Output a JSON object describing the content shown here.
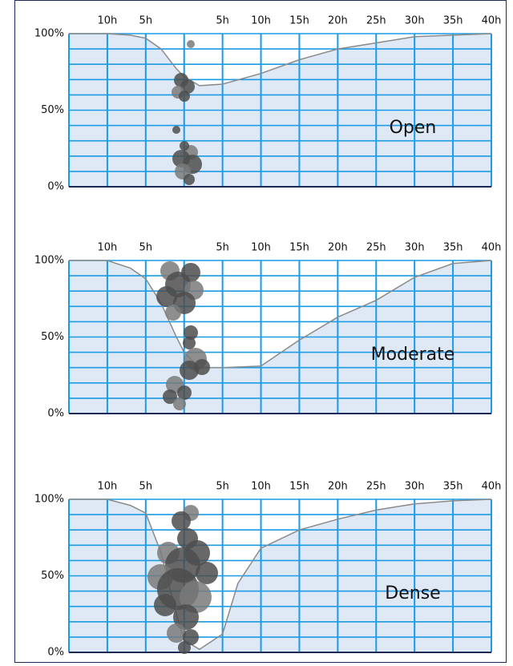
{
  "chart_data": [
    {
      "type": "line",
      "label": "Open",
      "color": "#8a8a8a",
      "fill": "#dfe9f5",
      "grid_color": "#1a9be6",
      "x": [
        -15,
        -10,
        -7,
        -5,
        -3,
        -1,
        0,
        2,
        5,
        10,
        15,
        20,
        25,
        30,
        35,
        40
      ],
      "values": [
        100,
        100,
        99,
        97,
        90,
        77,
        72,
        66,
        67,
        74,
        83,
        90,
        94,
        98,
        99,
        100
      ],
      "xlim": [
        -15,
        40
      ],
      "ylim": [
        0,
        100
      ],
      "xticks": [
        {
          "value": -10,
          "label": "10h"
        },
        {
          "value": -5,
          "label": "5h"
        },
        {
          "value": 0,
          "label": null
        },
        {
          "value": 5,
          "label": "5h"
        },
        {
          "value": 10,
          "label": "10h"
        },
        {
          "value": 15,
          "label": "15h"
        },
        {
          "value": 20,
          "label": "20h"
        },
        {
          "value": 25,
          "label": "25h"
        },
        {
          "value": 30,
          "label": "30h"
        },
        {
          "value": 35,
          "label": "35h"
        },
        {
          "value": 40,
          "label": "40h"
        }
      ],
      "yticks": [
        {
          "value": 0,
          "label": "0%"
        },
        {
          "value": 50,
          "label": "50%"
        },
        {
          "value": 100,
          "label": "100%"
        }
      ],
      "ygrid": [
        0,
        10,
        20,
        30,
        40,
        50,
        60,
        70,
        80,
        90,
        100
      ]
    },
    {
      "type": "line",
      "label": "Moderate",
      "color": "#8a8a8a",
      "fill": "#dfe9f5",
      "grid_color": "#1a9be6",
      "x": [
        -15,
        -10,
        -7,
        -5,
        -3,
        -1,
        0,
        2,
        5,
        10,
        15,
        20,
        25,
        30,
        35,
        40
      ],
      "values": [
        100,
        100,
        95,
        88,
        72,
        50,
        40,
        30,
        30,
        31,
        48,
        63,
        74,
        89,
        98,
        100
      ],
      "xlim": [
        -15,
        40
      ],
      "ylim": [
        0,
        100
      ],
      "xticks": [
        {
          "value": -10,
          "label": "10h"
        },
        {
          "value": -5,
          "label": "5h"
        },
        {
          "value": 0,
          "label": null
        },
        {
          "value": 5,
          "label": "5h"
        },
        {
          "value": 10,
          "label": "10h"
        },
        {
          "value": 15,
          "label": "15h"
        },
        {
          "value": 20,
          "label": "20h"
        },
        {
          "value": 25,
          "label": "25h"
        },
        {
          "value": 30,
          "label": "30h"
        },
        {
          "value": 35,
          "label": "35h"
        },
        {
          "value": 40,
          "label": "40h"
        }
      ],
      "yticks": [
        {
          "value": 0,
          "label": "0%"
        },
        {
          "value": 50,
          "label": "50%"
        },
        {
          "value": 100,
          "label": "100%"
        }
      ],
      "ygrid": [
        0,
        10,
        20,
        30,
        40,
        50,
        60,
        70,
        80,
        90,
        100
      ]
    },
    {
      "type": "line",
      "label": "Dense",
      "color": "#8a8a8a",
      "fill": "#dfe9f5",
      "grid_color": "#1a9be6",
      "x": [
        -15,
        -10,
        -7,
        -5,
        -3,
        -1,
        0,
        2,
        5,
        7,
        10,
        15,
        20,
        25,
        30,
        35,
        40
      ],
      "values": [
        100,
        100,
        96,
        91,
        65,
        25,
        8,
        2,
        12,
        45,
        68,
        80,
        87,
        93,
        97,
        99,
        100
      ],
      "xlim": [
        -15,
        40
      ],
      "ylim": [
        0,
        100
      ],
      "xticks": [
        {
          "value": -10,
          "label": "10h"
        },
        {
          "value": -5,
          "label": "5h"
        },
        {
          "value": 0,
          "label": null
        },
        {
          "value": 5,
          "label": "5h"
        },
        {
          "value": 10,
          "label": "10h"
        },
        {
          "value": 15,
          "label": "15h"
        },
        {
          "value": 20,
          "label": "20h"
        },
        {
          "value": 25,
          "label": "25h"
        },
        {
          "value": 30,
          "label": "30h"
        },
        {
          "value": 35,
          "label": "35h"
        },
        {
          "value": 40,
          "label": "40h"
        }
      ],
      "yticks": [
        {
          "value": 0,
          "label": "0%"
        },
        {
          "value": 50,
          "label": "50%"
        },
        {
          "value": 100,
          "label": "100%"
        }
      ],
      "ygrid": [
        0,
        10,
        20,
        30,
        40,
        50,
        60,
        70,
        80,
        90,
        100
      ]
    }
  ]
}
